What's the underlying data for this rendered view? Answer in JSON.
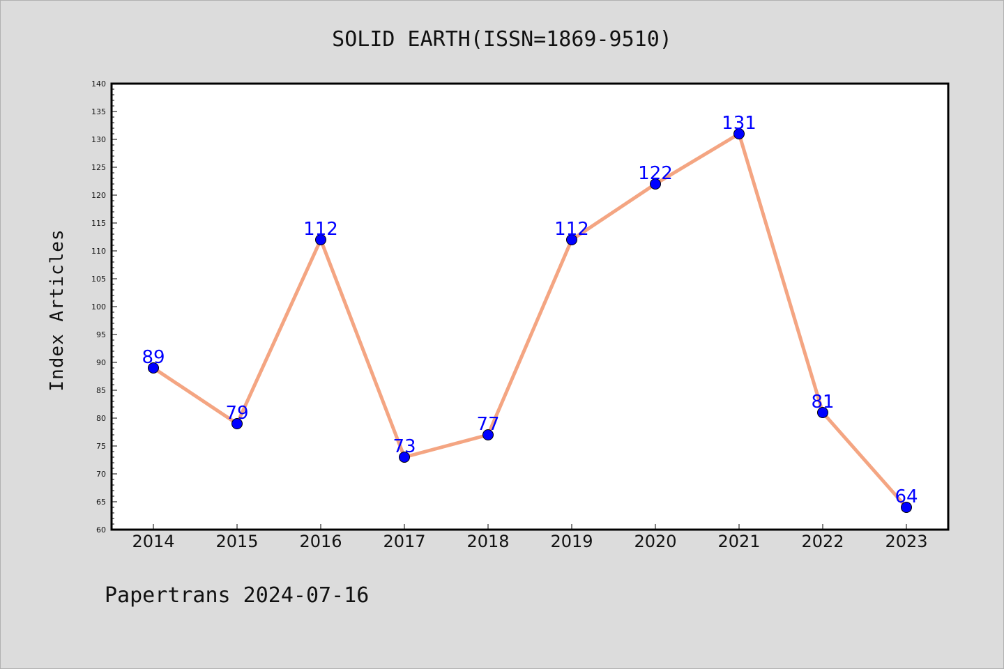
{
  "chart_data": {
    "type": "line",
    "title": "SOLID EARTH(ISSN=1869-9510)",
    "xlabel": "",
    "ylabel": "Index Articles",
    "categories": [
      "2014",
      "2015",
      "2016",
      "2017",
      "2018",
      "2019",
      "2020",
      "2021",
      "2022",
      "2023"
    ],
    "series": [
      {
        "values": [
          89,
          79,
          112,
          73,
          77,
          112,
          122,
          131,
          81,
          64
        ]
      }
    ],
    "ylim": [
      60,
      140
    ],
    "yticks": [
      60,
      65,
      70,
      75,
      80,
      85,
      90,
      95,
      100,
      105,
      110,
      115,
      120,
      125,
      130,
      135,
      140
    ],
    "grid": false,
    "line_color": "#f4a582",
    "marker_color": "#0000ff",
    "label_color": "#0000ff",
    "background_color": "#dcdcdc",
    "plot_background_color": "#ffffff"
  },
  "footer": "Papertrans 2024-07-16"
}
